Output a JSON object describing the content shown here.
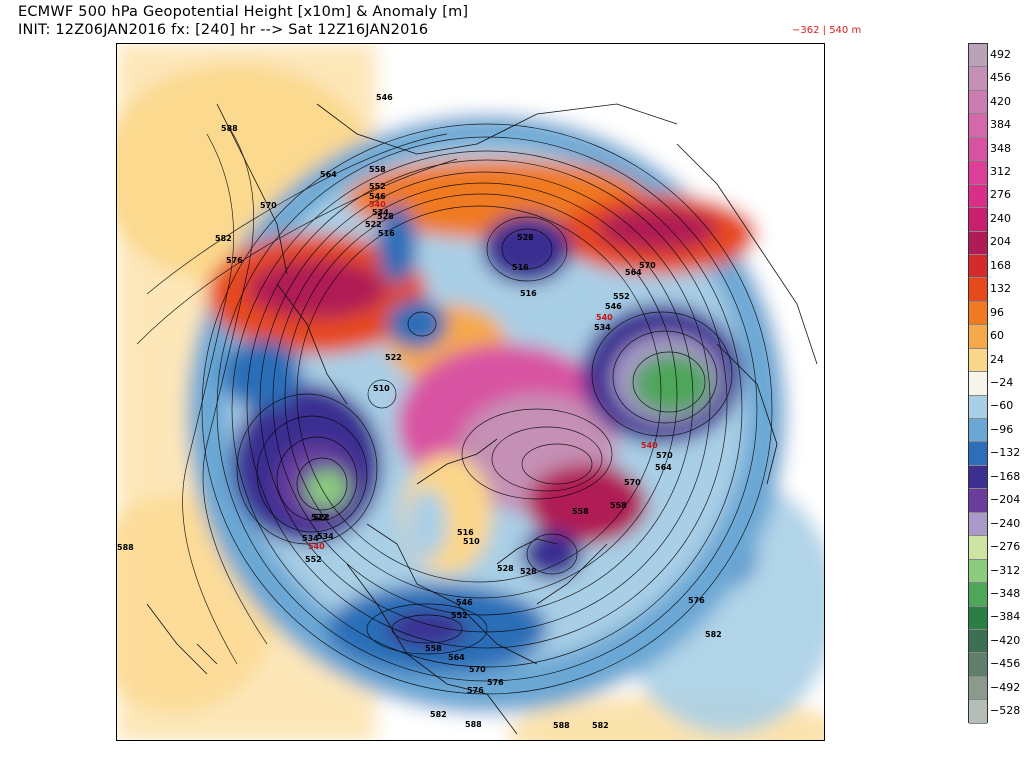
{
  "header": {
    "title_line1": "ECMWF 500 hPa Geopotential Height [x10m] & Anomaly [m]",
    "title_line2": "INIT: 12Z06JAN2016 fx: [240] hr --> Sat 12Z16JAN2016",
    "min_max": "−362 | 540 m"
  },
  "colorbar": {
    "labels": [
      "492",
      "456",
      "420",
      "384",
      "348",
      "312",
      "276",
      "240",
      "204",
      "168",
      "132",
      "96",
      "60",
      "24",
      "−24",
      "−60",
      "−96",
      "−132",
      "−168",
      "−204",
      "−240",
      "−276",
      "−312",
      "−348",
      "−384",
      "−420",
      "−456",
      "−492",
      "−528"
    ],
    "colors": [
      "#b9a3b8",
      "#c590b5",
      "#cc7cb0",
      "#d368aa",
      "#d852a2",
      "#dc3f98",
      "#d92f88",
      "#c81f6f",
      "#b01a55",
      "#d42a2a",
      "#e64a1c",
      "#f07a22",
      "#f6a94a",
      "#fbd78a",
      "#f7f5ea",
      "#a9cfe6",
      "#6ba7d4",
      "#2c6eb7",
      "#3b2f91",
      "#6a3d9d",
      "#a99ac9",
      "#cce5a3",
      "#8bcb7e",
      "#4ea65a",
      "#2b7f45",
      "#3d6f52",
      "#607e6c",
      "#8a9a8e",
      "#b4beb7"
    ]
  },
  "map": {
    "height_labels": [
      "588",
      "576",
      "582",
      "570",
      "564",
      "558",
      "552",
      "546",
      "540",
      "534",
      "528",
      "522",
      "516",
      "552",
      "546",
      "540",
      "534",
      "528",
      "522",
      "516",
      "528",
      "522",
      "516",
      "510",
      "558",
      "564",
      "570",
      "534",
      "540",
      "546",
      "552",
      "570",
      "576",
      "582",
      "588",
      "576",
      "582",
      "570",
      "564",
      "558",
      "546",
      "540",
      "534",
      "528",
      "522",
      "516",
      "510",
      "558",
      "552",
      "564",
      "570",
      "576",
      "582",
      "588",
      "588"
    ],
    "anomaly_max_label": "540"
  }
}
